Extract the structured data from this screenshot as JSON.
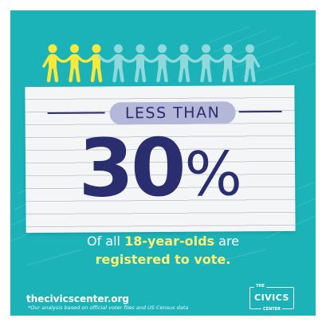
{
  "colors": {
    "background": "#1bb3b8",
    "navy": "#2a2e6e",
    "yellow": "#f6e93b",
    "light_teal": "#8fd9dc",
    "paper": "#f4f5f7",
    "pill": "#b3b7d8"
  },
  "people": {
    "highlighted_count": 3,
    "total_count": 10
  },
  "headline": {
    "label": "LESS THAN",
    "number": "30",
    "percent_sign": "%"
  },
  "caption": {
    "line1_prefix": "Of all ",
    "line1_highlight": "18-year-olds",
    "line1_suffix": " are",
    "line2_highlight": "registered to vote."
  },
  "footer": {
    "website": "thecivicscenter.org",
    "note": "*Our analysis based on official voter files and US Census data"
  },
  "logo": {
    "the": "THE",
    "main": "CIVICS",
    "center": "CENTER"
  }
}
